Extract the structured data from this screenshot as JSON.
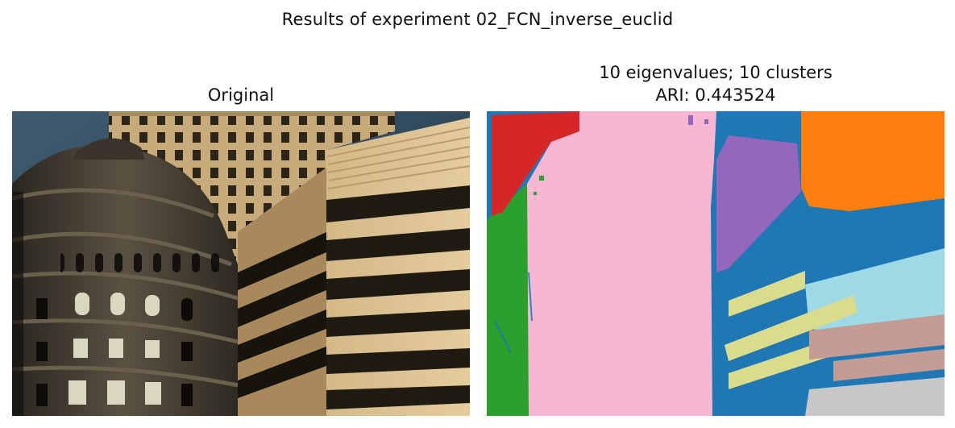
{
  "figure": {
    "suptitle": "Results of experiment 02_FCN_inverse_euclid"
  },
  "panels": {
    "original": {
      "title": "Original",
      "image": "photo of buildings: ornate round stone tower on left, grid-window skyscraper in center, beige office building with dark horizontal window bands on right, blue sky top-left"
    },
    "segmentation": {
      "title_line1": "10 eigenvalues; 10 clusters",
      "title_line2": "ARI: 0.443524",
      "image": "segmentation map with 10 colored clusters"
    }
  },
  "colors": {
    "red": "#d62728",
    "blue": "#1f77b4",
    "green": "#2ca02c",
    "pink": "#f7b6d2",
    "purple": "#9467bd",
    "orange": "#ff7f0e",
    "lightblue": "#9edae5",
    "olive": "#dbdb8d",
    "rose": "#c49c94",
    "gray": "#c7c7c7"
  }
}
